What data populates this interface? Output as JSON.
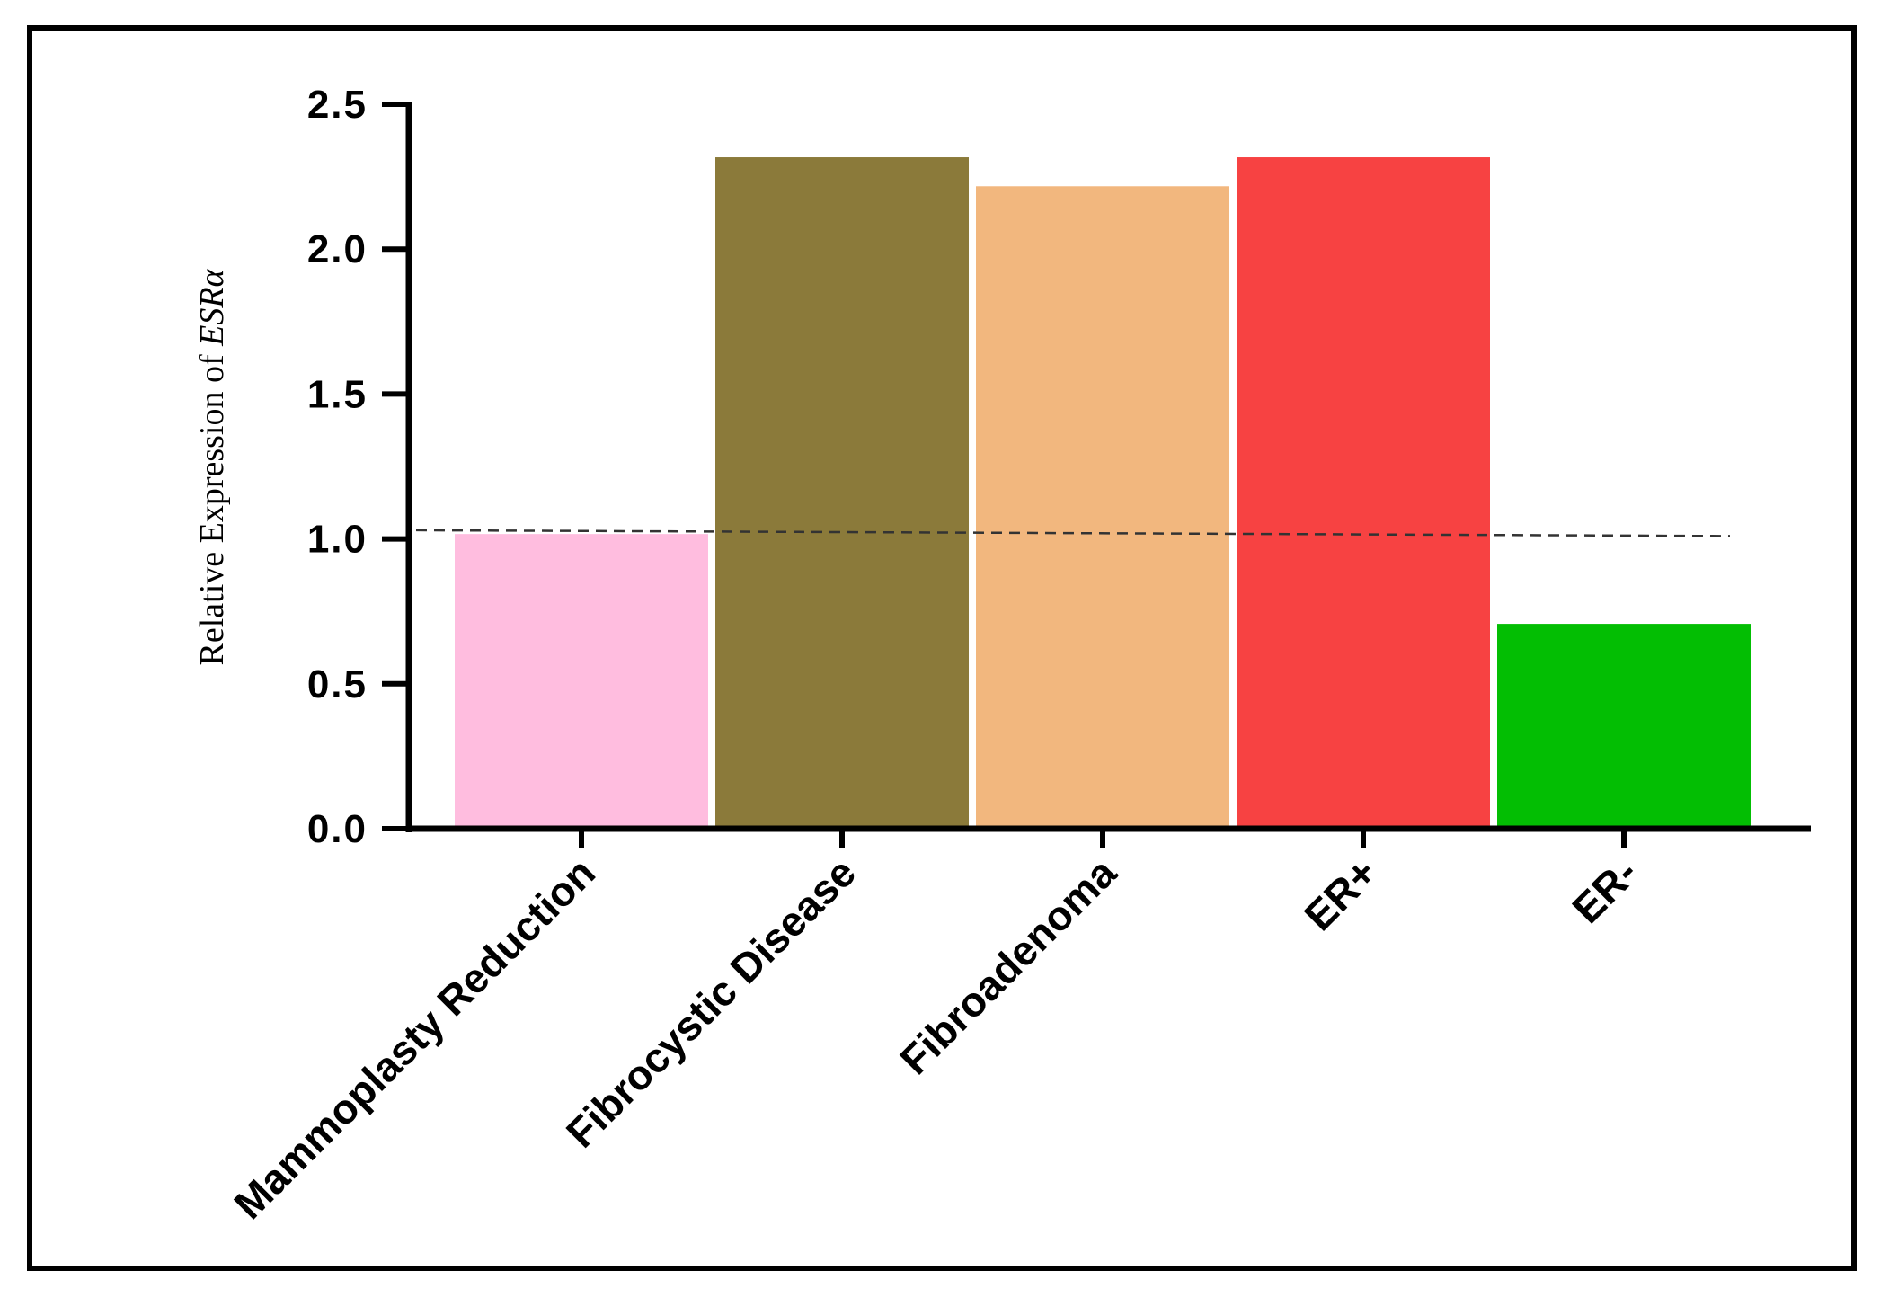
{
  "chart_data": {
    "type": "bar",
    "title": "",
    "xlabel": "",
    "ylabel": "Relative Expression of",
    "ylabel_gene": "ESRα",
    "categories": [
      "Mammoplasty Reduction",
      "Fibrocystic Disease",
      "Fibroadenoma",
      "ER+",
      "ER-"
    ],
    "values": [
      1.02,
      2.32,
      2.22,
      2.32,
      0.71
    ],
    "colors": [
      "#FFBDDF",
      "#8B7A3A",
      "#F2B77E",
      "#F74242",
      "#03BE03"
    ],
    "ylim": [
      0,
      2.5
    ],
    "yticks": [
      "0.0",
      "0.5",
      "1.0",
      "1.5",
      "2.0",
      "2.5"
    ],
    "reference_line": {
      "y_start": 1.03,
      "y_end": 1.01,
      "style": "dashed"
    },
    "grid": false,
    "legend": "none"
  }
}
